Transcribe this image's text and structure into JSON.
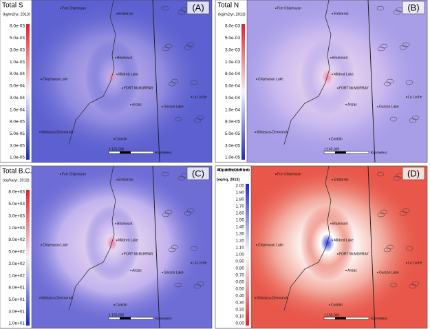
{
  "panels": [
    {
      "letter": "(A)",
      "title": "Total S",
      "units": "(kg/m2/yr, 2013)",
      "legend": {
        "labels": [
          "8.0e-03",
          "5.0e-03",
          "3.0e-03",
          "1.0e-03",
          "8.0e-04",
          "5.0e-04",
          "3.0e-04",
          "1.0e-04",
          "8.0e-05",
          "5.0e-05",
          "3.0e-05",
          "1.0e-05"
        ]
      }
    },
    {
      "letter": "(B)",
      "title": "Total N",
      "units": "(kg/m2/yr, 2013)",
      "legend": {
        "labels": [
          "8.0e-03",
          "5.0e-03",
          "3.0e-03",
          "1.0e-03",
          "8.0e-04",
          "5.0e-04",
          "3.0e-04",
          "1.0e-04",
          "8.0e-05",
          "5.0e-05",
          "3.0e-05",
          "1.0e-05"
        ]
      }
    },
    {
      "letter": "(C)",
      "title": "Total B.C.",
      "units": "(eq/ha/yr, 2013)",
      "legend": {
        "labels": [
          "8.0e+03",
          "5.0e+03",
          "3.0e+03",
          "1.0e+03",
          "8.0e+02",
          "5.0e+02",
          "3.0e+02",
          "1.0e+02",
          "8.0e+01",
          "5.0e+01",
          "3.0e+01",
          "1.0e+01"
        ]
      }
    },
    {
      "letter": "(D)",
      "title": "Air-Deposited Base Cation / Anion ratio",
      "units": "(eq/eq, 2013)",
      "legend": {
        "labels": [
          "2.00",
          "1.90",
          "1.80",
          "1.70",
          "1.60",
          "1.50",
          "1.40",
          "1.30",
          "1.20",
          "1.10",
          "1.00",
          "0.90",
          "0.80",
          "0.70",
          "0.60",
          "0.50",
          "0.40",
          "0.30",
          "0.20",
          "0.10",
          "0.00"
        ]
      }
    }
  ],
  "places": [
    "Fort Chipewyan",
    "Embarras",
    "Bitumount",
    "Mildred Lake",
    "FORT McMURRAY",
    "Chipewyan Lake",
    "Anzac",
    "Wabasca-Desmarais",
    "Conklin",
    "La Loche",
    "Garson Lake"
  ],
  "scale": {
    "ratio": "1:165,000",
    "unit": "Kilometers"
  }
}
